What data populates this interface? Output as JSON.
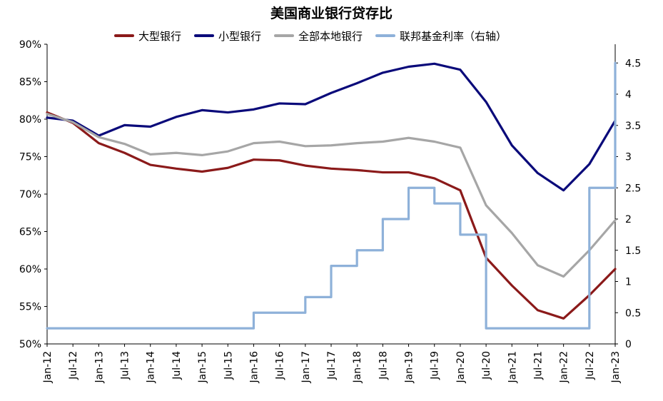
{
  "chart_data": {
    "type": "line",
    "title": "美国商业银行贷存比",
    "x": [
      "Jan-12",
      "Jul-12",
      "Jan-13",
      "Jul-13",
      "Jan-14",
      "Jul-14",
      "Jan-15",
      "Jul-15",
      "Jan-16",
      "Jul-16",
      "Jan-17",
      "Jul-17",
      "Jan-18",
      "Jul-18",
      "Jan-19",
      "Jul-19",
      "Jan-20",
      "Jul-20",
      "Jan-21",
      "Jul-21",
      "Jan-22",
      "Jul-22",
      "Jan-23"
    ],
    "xlabel": "",
    "y_left": {
      "label": "",
      "range": [
        50,
        90
      ],
      "ticks": [
        "50%",
        "55%",
        "60%",
        "65%",
        "70%",
        "75%",
        "80%",
        "85%",
        "90%"
      ]
    },
    "y_right": {
      "label": "",
      "range": [
        0,
        4.8
      ],
      "ticks": [
        "0",
        "0.5",
        "1",
        "1.5",
        "2",
        "2.5",
        "3",
        "3.5",
        "4",
        "4.5"
      ]
    },
    "series": [
      {
        "name": "大型银行",
        "axis": "left",
        "color": "#8B1A1A",
        "values": [
          80.9,
          79.5,
          76.8,
          75.5,
          73.9,
          73.4,
          73.0,
          73.5,
          74.6,
          74.5,
          73.8,
          73.4,
          73.2,
          72.9,
          72.9,
          72.1,
          70.5,
          61.5,
          57.8,
          54.5,
          53.4,
          56.5,
          60.0
        ]
      },
      {
        "name": "小型银行",
        "axis": "left",
        "color": "#0A0A7A",
        "values": [
          80.2,
          79.8,
          77.8,
          79.2,
          79.0,
          80.3,
          81.2,
          80.9,
          81.3,
          82.1,
          82.0,
          83.5,
          84.8,
          86.2,
          87.0,
          87.4,
          86.6,
          82.3,
          76.5,
          72.8,
          70.5,
          74.0,
          79.8
        ]
      },
      {
        "name": "全部本地银行",
        "axis": "left",
        "color": "#A6A6A6",
        "values": [
          80.7,
          79.6,
          77.6,
          76.7,
          75.3,
          75.5,
          75.2,
          75.7,
          76.8,
          77.0,
          76.4,
          76.5,
          76.8,
          77.0,
          77.5,
          77.0,
          76.2,
          68.5,
          64.8,
          60.5,
          59.0,
          62.5,
          66.5
        ]
      },
      {
        "name": "联邦基金利率（右轴）",
        "axis": "right",
        "color": "#8EB1D9",
        "values": [
          0.25,
          0.25,
          0.25,
          0.25,
          0.25,
          0.25,
          0.25,
          0.25,
          0.5,
          0.5,
          0.75,
          1.25,
          1.5,
          2.0,
          2.5,
          2.25,
          1.75,
          0.25,
          0.25,
          0.25,
          0.25,
          2.5,
          4.5
        ]
      }
    ]
  }
}
